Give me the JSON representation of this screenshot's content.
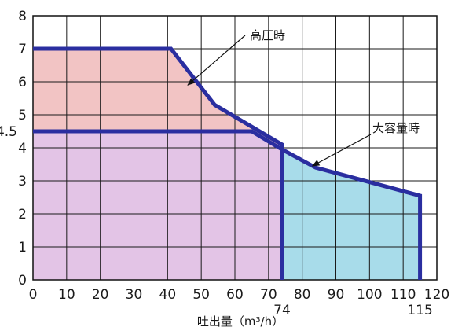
{
  "chart_data": {
    "type": "area",
    "xlabel": "吐出量（m³/h）",
    "ylabel": "",
    "xlim": [
      0,
      120
    ],
    "ylim": [
      0,
      8
    ],
    "grid": true,
    "x_ticks": [
      0,
      10,
      20,
      30,
      40,
      50,
      60,
      70,
      80,
      90,
      100,
      110,
      120
    ],
    "x_extra_ticks": [
      74,
      115
    ],
    "y_ticks": [
      0,
      1,
      2,
      3,
      4,
      5,
      6,
      7,
      8
    ],
    "y_extra_ticks": [
      4.5
    ],
    "series": [
      {
        "name": "高圧時",
        "x": [
          0,
          41,
          54,
          74,
          74
        ],
        "y": [
          7,
          7,
          5.3,
          4.1,
          0
        ],
        "fill_color": "#f2c4c4"
      },
      {
        "name": "大容量時",
        "x": [
          0,
          65,
          74,
          84,
          115,
          115
        ],
        "y": [
          4.5,
          4.5,
          3.95,
          3.4,
          2.55,
          0
        ],
        "fill_color": "#a8dcea"
      }
    ],
    "overlap_fill_color": "#e3c4e6",
    "line_color": "#2a2ea0",
    "annotations": [
      {
        "text": "高圧時",
        "points_to": [
          46,
          5.9
        ]
      },
      {
        "text": "大容量時",
        "points_to": [
          83,
          3.45
        ]
      }
    ]
  }
}
